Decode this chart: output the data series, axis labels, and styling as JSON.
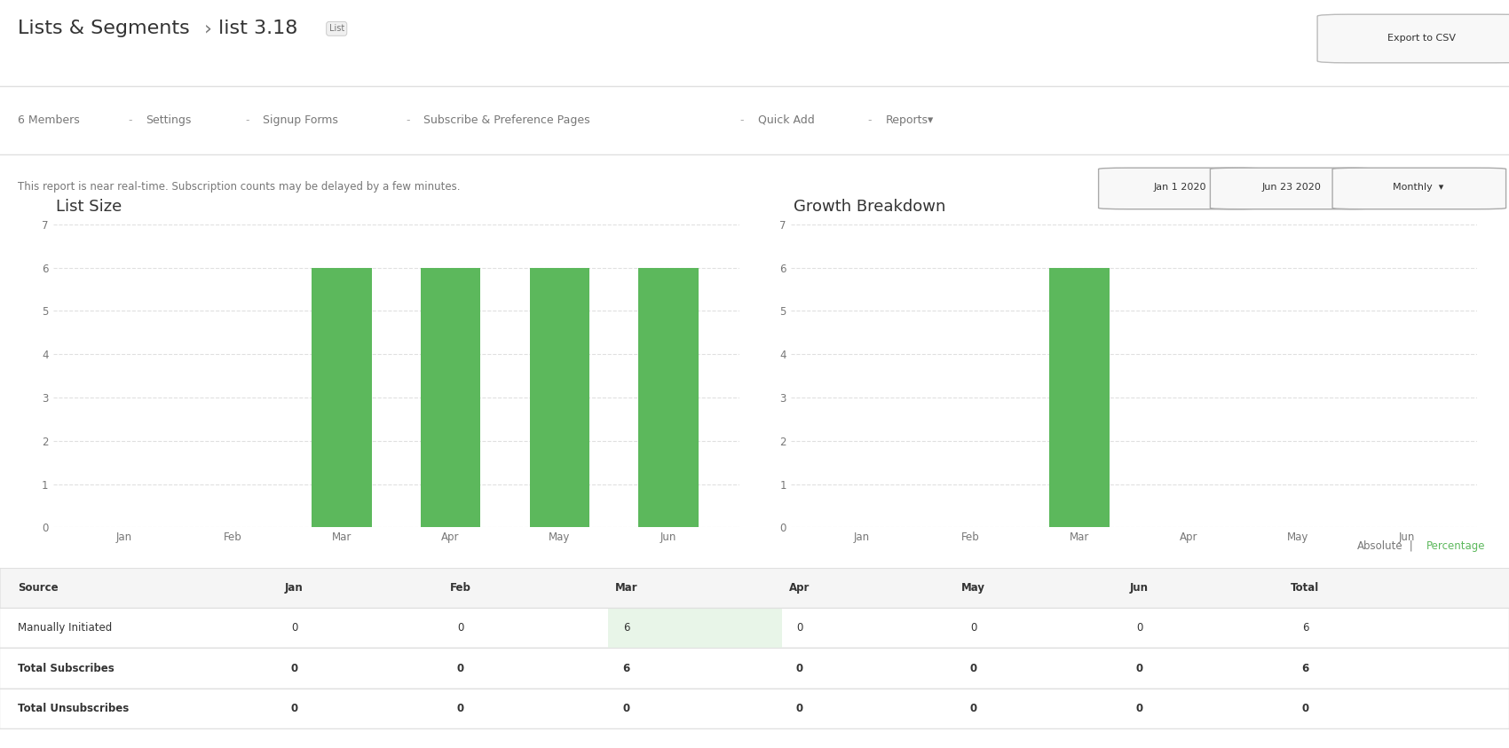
{
  "title_main": "Lists & Segments",
  "title_arrow": "›",
  "title_list": "list 3.18",
  "title_badge": "List",
  "nav_items": [
    "6 Members",
    "Settings",
    "Signup Forms",
    "Subscribe & Preference Pages",
    "Quick Add",
    "Reports▾"
  ],
  "report_note": "This report is near real-time. Subscription counts may be delayed by a few minutes.",
  "date_btn1": "Jan 1 2020",
  "date_btn2": "Jun 23 2020",
  "freq_btn": "Monthly",
  "export_btn": "Export to CSV",
  "absolute_link": "Absolute",
  "percentage_link": "Percentage",
  "list_size_title": "List Size",
  "growth_title": "Growth Breakdown",
  "months": [
    "Jan",
    "Feb",
    "Mar",
    "Apr",
    "May",
    "Jun"
  ],
  "list_size_values": [
    0,
    0,
    6,
    6,
    6,
    6
  ],
  "growth_values": [
    0,
    0,
    6,
    0,
    0,
    0
  ],
  "bar_color": "#5cb85c",
  "ylim_list": [
    0,
    7
  ],
  "ylim_growth": [
    0,
    7
  ],
  "yticks": [
    0,
    1,
    2,
    3,
    4,
    5,
    6,
    7
  ],
  "table_headers": [
    "Source",
    "Jan",
    "Feb",
    "Mar",
    "Apr",
    "May",
    "Jun",
    "Total"
  ],
  "table_rows": [
    [
      "Manually Initiated",
      "0",
      "0",
      "6",
      "0",
      "0",
      "0",
      "6"
    ],
    [
      "Total Subscribes",
      "0",
      "0",
      "6",
      "0",
      "0",
      "0",
      "6"
    ],
    [
      "Total Unsubscribes",
      "0",
      "0",
      "0",
      "0",
      "0",
      "0",
      "0"
    ]
  ],
  "bg_color": "#ffffff",
  "border_color": "#e0e0e0",
  "text_color": "#333333",
  "light_text": "#777777",
  "green_text": "#5cb85c",
  "highlight_cell_color": "#e8f5e8"
}
